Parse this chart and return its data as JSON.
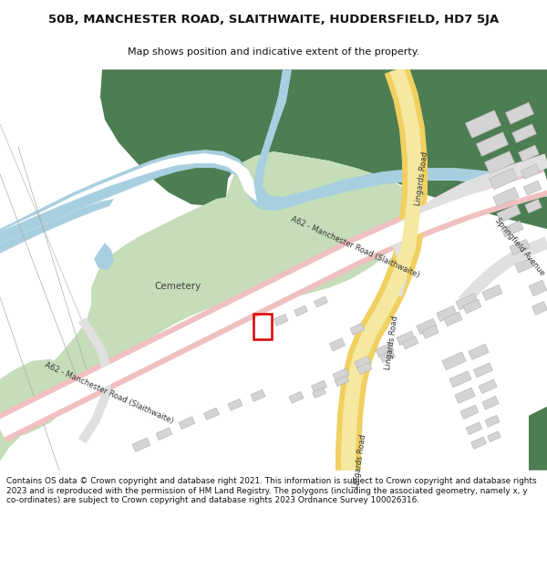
{
  "title": "50B, MANCHESTER ROAD, SLAITHWAITE, HUDDERSFIELD, HD7 5JA",
  "subtitle": "Map shows position and indicative extent of the property.",
  "footer": "Contains OS data © Crown copyright and database right 2021. This information is subject to Crown copyright and database rights 2023 and is reproduced with the permission of HM Land Registry. The polygons (including the associated geometry, namely x, y co-ordinates) are subject to Crown copyright and database rights 2023 Ordnance Survey 100026316.",
  "green_dark": "#4d7d52",
  "green_light": "#c5ddb8",
  "blue_water": "#a8cfe0",
  "road_pink": "#f0c0c0",
  "road_pink_edge": "#e8a8a8",
  "road_yellow": "#f0d060",
  "road_yellow_light": "#f5e8a0",
  "road_gray": "#e0e0e0",
  "building_gray": "#d4d4d4",
  "building_edge": "#b0b0b0",
  "plot_red": "#dd0000",
  "text_dark": "#333333",
  "path_gray": "#cccccc",
  "bg_white": "#ffffff",
  "thin_line": "#999999"
}
